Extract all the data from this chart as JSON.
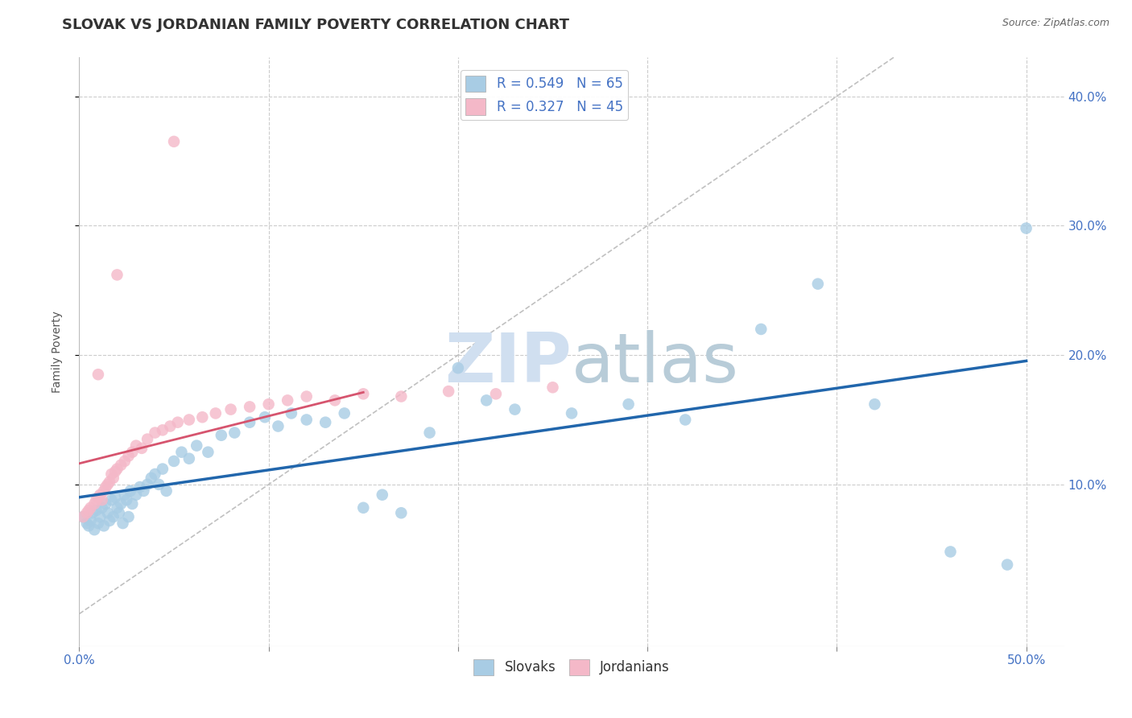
{
  "title": "SLOVAK VS JORDANIAN FAMILY POVERTY CORRELATION CHART",
  "source": "Source: ZipAtlas.com",
  "ylabel": "Family Poverty",
  "xlim": [
    0.0,
    0.52
  ],
  "ylim": [
    -0.025,
    0.43
  ],
  "slovak_color": "#a8cce4",
  "jordanian_color": "#f4b8c8",
  "slovak_R": 0.549,
  "slovak_N": 65,
  "jordanian_R": 0.327,
  "jordanian_N": 45,
  "regression_line_color_slovak": "#2166ac",
  "regression_line_color_jordanian": "#d6546e",
  "diagonal_line_color": "#c0c0c0",
  "background_color": "#ffffff",
  "grid_color": "#cccccc",
  "title_fontsize": 13,
  "axis_label_fontsize": 10,
  "tick_fontsize": 11,
  "legend_fontsize": 12,
  "watermark_color": "#d0dff0",
  "slovak_x": [
    0.002,
    0.004,
    0.005,
    0.006,
    0.007,
    0.008,
    0.009,
    0.01,
    0.011,
    0.012,
    0.013,
    0.014,
    0.015,
    0.016,
    0.017,
    0.018,
    0.019,
    0.02,
    0.021,
    0.022,
    0.023,
    0.024,
    0.025,
    0.026,
    0.027,
    0.028,
    0.03,
    0.032,
    0.034,
    0.036,
    0.038,
    0.04,
    0.042,
    0.044,
    0.046,
    0.05,
    0.054,
    0.058,
    0.062,
    0.068,
    0.075,
    0.082,
    0.09,
    0.098,
    0.105,
    0.112,
    0.12,
    0.13,
    0.14,
    0.15,
    0.16,
    0.17,
    0.185,
    0.2,
    0.215,
    0.23,
    0.26,
    0.29,
    0.32,
    0.36,
    0.39,
    0.42,
    0.46,
    0.49,
    0.5
  ],
  "slovak_y": [
    0.075,
    0.07,
    0.068,
    0.072,
    0.078,
    0.065,
    0.08,
    0.07,
    0.075,
    0.082,
    0.068,
    0.085,
    0.078,
    0.072,
    0.088,
    0.075,
    0.09,
    0.082,
    0.078,
    0.085,
    0.07,
    0.092,
    0.088,
    0.075,
    0.095,
    0.085,
    0.092,
    0.098,
    0.095,
    0.1,
    0.105,
    0.108,
    0.1,
    0.112,
    0.095,
    0.118,
    0.125,
    0.12,
    0.13,
    0.125,
    0.138,
    0.14,
    0.148,
    0.152,
    0.145,
    0.155,
    0.15,
    0.148,
    0.155,
    0.082,
    0.092,
    0.078,
    0.14,
    0.19,
    0.165,
    0.158,
    0.155,
    0.162,
    0.15,
    0.22,
    0.255,
    0.162,
    0.048,
    0.038,
    0.298
  ],
  "jordanian_x": [
    0.002,
    0.004,
    0.005,
    0.006,
    0.008,
    0.009,
    0.01,
    0.011,
    0.012,
    0.013,
    0.014,
    0.015,
    0.016,
    0.017,
    0.018,
    0.019,
    0.02,
    0.022,
    0.024,
    0.026,
    0.028,
    0.03,
    0.033,
    0.036,
    0.04,
    0.044,
    0.048,
    0.052,
    0.058,
    0.065,
    0.072,
    0.08,
    0.09,
    0.1,
    0.11,
    0.12,
    0.135,
    0.15,
    0.17,
    0.195,
    0.22,
    0.25,
    0.05,
    0.02,
    0.01
  ],
  "jordanian_y": [
    0.075,
    0.078,
    0.08,
    0.082,
    0.085,
    0.088,
    0.09,
    0.092,
    0.088,
    0.095,
    0.098,
    0.1,
    0.102,
    0.108,
    0.105,
    0.11,
    0.112,
    0.115,
    0.118,
    0.122,
    0.125,
    0.13,
    0.128,
    0.135,
    0.14,
    0.142,
    0.145,
    0.148,
    0.15,
    0.152,
    0.155,
    0.158,
    0.16,
    0.162,
    0.165,
    0.168,
    0.165,
    0.17,
    0.168,
    0.172,
    0.17,
    0.175,
    0.365,
    0.262,
    0.185
  ]
}
